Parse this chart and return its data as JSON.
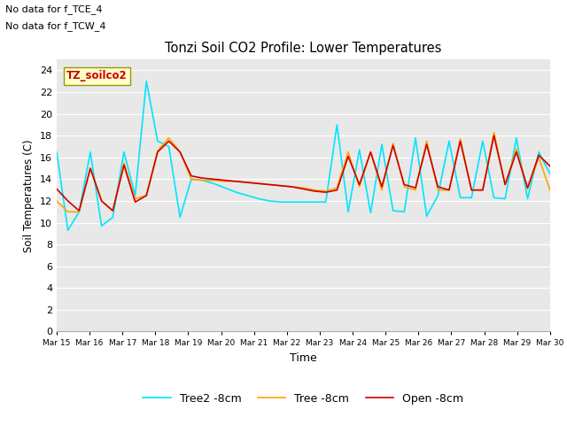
{
  "title": "Tonzi Soil CO2 Profile: Lower Temperatures",
  "ylabel": "Soil Temperatures (C)",
  "xlabel": "Time",
  "annotation_lines": [
    "No data for f_TCE_4",
    "No data for f_TCW_4"
  ],
  "box_label": "TZ_soilco2",
  "ylim": [
    0,
    25
  ],
  "yticks": [
    0,
    2,
    4,
    6,
    8,
    10,
    12,
    14,
    16,
    18,
    20,
    22,
    24
  ],
  "background_color": "#e8e8e8",
  "series": {
    "open": {
      "label": "Open -8cm",
      "color": "#cc0000",
      "linewidth": 1.2
    },
    "tree": {
      "label": "Tree -8cm",
      "color": "#ffa500",
      "linewidth": 1.2
    },
    "tree2": {
      "label": "Tree2 -8cm",
      "color": "#00e5ff",
      "linewidth": 1.2
    }
  },
  "x_tick_labels": [
    "Mar 15",
    "Mar 16",
    "Mar 17",
    "Mar 18",
    "Mar 19",
    "Mar 20",
    "Mar 21",
    "Mar 22",
    "Mar 23",
    "Mar 24",
    "Mar 25",
    "Mar 26",
    "Mar 27",
    "Mar 28",
    "Mar 29",
    "Mar 30"
  ],
  "open_data": [
    13.1,
    12.0,
    11.1,
    15.0,
    12.0,
    11.1,
    15.3,
    11.9,
    12.5,
    16.5,
    17.5,
    16.5,
    14.3,
    14.1,
    14.0,
    13.9,
    13.8,
    13.7,
    13.6,
    13.5,
    13.4,
    13.3,
    13.1,
    12.9,
    12.8,
    13.0,
    16.1,
    13.5,
    16.5,
    13.3,
    17.1,
    13.5,
    13.2,
    17.2,
    13.3,
    13.0,
    17.5,
    13.0,
    13.0,
    18.0,
    13.5,
    16.5,
    13.2,
    16.2,
    15.2
  ],
  "tree_data": [
    12.0,
    11.0,
    11.0,
    15.0,
    12.0,
    11.1,
    15.5,
    12.2,
    12.5,
    16.6,
    17.8,
    16.5,
    14.0,
    13.9,
    13.9,
    13.8,
    13.8,
    13.7,
    13.6,
    13.5,
    13.4,
    13.3,
    13.2,
    13.0,
    12.9,
    13.2,
    16.5,
    13.3,
    16.5,
    13.0,
    17.3,
    13.3,
    13.0,
    17.5,
    13.0,
    13.0,
    17.7,
    13.0,
    13.0,
    18.3,
    13.5,
    16.8,
    13.1,
    16.0,
    13.0
  ],
  "tree2_data": [
    16.5,
    9.3,
    11.0,
    16.5,
    9.7,
    10.5,
    16.5,
    12.5,
    23.0,
    17.5,
    17.0,
    10.5,
    14.0,
    13.9,
    13.6,
    13.2,
    12.8,
    12.5,
    12.2,
    12.0,
    11.9,
    11.9,
    11.9,
    11.9,
    11.9,
    19.0,
    11.0,
    16.7,
    10.9,
    17.2,
    11.1,
    11.0,
    17.8,
    10.6,
    12.5,
    17.5,
    12.3,
    12.3,
    17.5,
    12.3,
    12.2,
    17.8,
    12.2,
    16.5,
    14.5
  ]
}
